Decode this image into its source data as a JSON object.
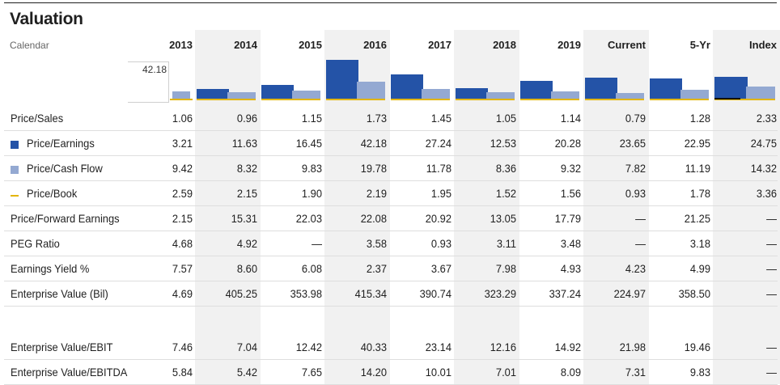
{
  "title": "Valuation",
  "calendar_label": "Calendar",
  "scale_value": "42.18",
  "columns": [
    "2013",
    "2014",
    "2015",
    "2016",
    "2017",
    "2018",
    "2019",
    "Current",
    "5-Yr",
    "Index"
  ],
  "colors": {
    "pe": "#2453a7",
    "pcf": "#94a9d2",
    "pb": "#e3b505",
    "shade": "#f1f1f1"
  },
  "chart_data": {
    "type": "bar",
    "categories": [
      "2013",
      "2014",
      "2015",
      "2016",
      "2017",
      "2018",
      "2019",
      "Current",
      "5-Yr",
      "Index"
    ],
    "series": [
      {
        "name": "Price/Earnings",
        "values": [
          3.21,
          11.63,
          16.45,
          42.18,
          27.24,
          12.53,
          20.28,
          23.65,
          22.95,
          24.75
        ]
      },
      {
        "name": "Price/Cash Flow",
        "values": [
          9.42,
          8.32,
          9.83,
          19.78,
          11.78,
          8.36,
          9.32,
          7.82,
          11.19,
          14.32
        ]
      },
      {
        "name": "Price/Book",
        "values": [
          2.59,
          2.15,
          1.9,
          2.19,
          1.95,
          1.52,
          1.56,
          0.93,
          1.78,
          3.36
        ]
      }
    ],
    "ylim": [
      0,
      42.18
    ]
  },
  "rows": [
    {
      "label": "Price/Sales",
      "marker": "",
      "values": [
        "1.06",
        "0.96",
        "1.15",
        "1.73",
        "1.45",
        "1.05",
        "1.14",
        "0.79",
        "1.28",
        "2.33"
      ]
    },
    {
      "label": "Price/Earnings",
      "marker": "pe",
      "values": [
        "3.21",
        "11.63",
        "16.45",
        "42.18",
        "27.24",
        "12.53",
        "20.28",
        "23.65",
        "22.95",
        "24.75"
      ]
    },
    {
      "label": "Price/Cash Flow",
      "marker": "pcf",
      "values": [
        "9.42",
        "8.32",
        "9.83",
        "19.78",
        "11.78",
        "8.36",
        "9.32",
        "7.82",
        "11.19",
        "14.32"
      ]
    },
    {
      "label": "Price/Book",
      "marker": "pb",
      "values": [
        "2.59",
        "2.15",
        "1.90",
        "2.19",
        "1.95",
        "1.52",
        "1.56",
        "0.93",
        "1.78",
        "3.36"
      ]
    },
    {
      "label": "Price/Forward Earnings",
      "marker": "",
      "values": [
        "2.15",
        "15.31",
        "22.03",
        "22.08",
        "20.92",
        "13.05",
        "17.79",
        "—",
        "21.25",
        "—"
      ]
    },
    {
      "label": "PEG Ratio",
      "marker": "",
      "values": [
        "4.68",
        "4.92",
        "—",
        "3.58",
        "0.93",
        "3.11",
        "3.48",
        "—",
        "3.18",
        "—"
      ]
    },
    {
      "label": "Earnings Yield %",
      "marker": "",
      "values": [
        "7.57",
        "8.60",
        "6.08",
        "2.37",
        "3.67",
        "7.98",
        "4.93",
        "4.23",
        "4.99",
        "—"
      ]
    },
    {
      "label": "Enterprise Value (Bil)",
      "marker": "",
      "values": [
        "4.69",
        "405.25",
        "353.98",
        "415.34",
        "390.74",
        "323.29",
        "337.24",
        "224.97",
        "358.50",
        "—"
      ]
    },
    {
      "label": "Enterprise Value/EBIT",
      "marker": "",
      "values": [
        "7.46",
        "7.04",
        "12.42",
        "40.33",
        "23.14",
        "12.16",
        "14.92",
        "21.98",
        "19.46",
        "—"
      ]
    },
    {
      "label": "Enterprise Value/EBITDA",
      "marker": "",
      "values": [
        "5.84",
        "5.42",
        "7.65",
        "14.20",
        "10.01",
        "7.01",
        "8.09",
        "7.31",
        "9.83",
        "—"
      ]
    }
  ]
}
